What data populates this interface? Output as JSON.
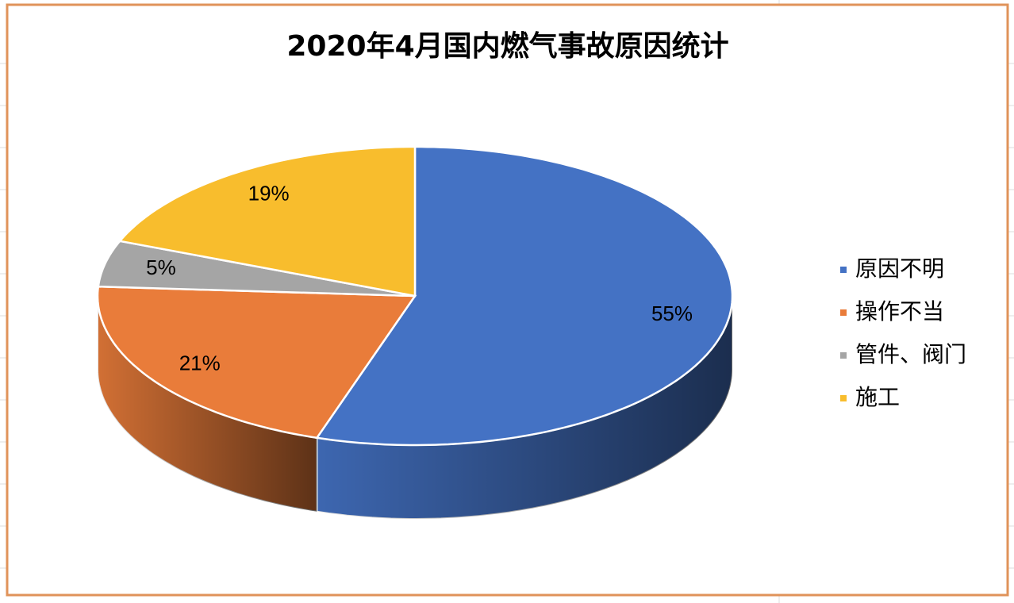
{
  "chart_data": {
    "type": "pie3d",
    "title": "2020年4月国内燃气事故原因统计",
    "categories": [
      "原因不明",
      "操作不当",
      "管件、阀门",
      "施工"
    ],
    "values": [
      55,
      21,
      5,
      19
    ],
    "value_labels": [
      "55%",
      "21%",
      "5%",
      "19%"
    ],
    "colors": [
      "#4472c4",
      "#e97c3a",
      "#a5a5a5",
      "#f8bd2d"
    ],
    "legend": "right"
  }
}
